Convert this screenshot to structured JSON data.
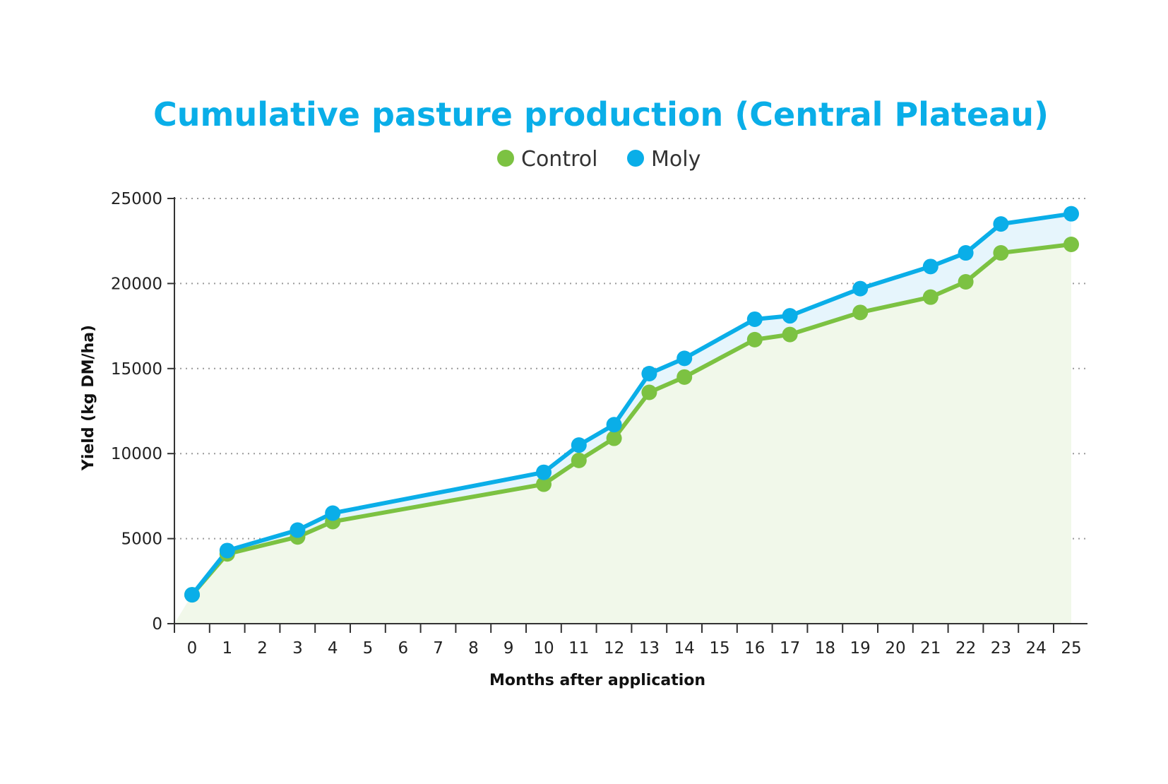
{
  "chart_data": {
    "type": "line",
    "title": "Cumulative pasture production (Central Plateau)",
    "xlabel": "Months after application",
    "ylabel": "Yield (kg DM/ha)",
    "xlim": [
      0,
      25
    ],
    "ylim": [
      0,
      25000
    ],
    "x_ticks": [
      0,
      1,
      2,
      3,
      4,
      5,
      6,
      7,
      8,
      9,
      10,
      11,
      12,
      13,
      14,
      15,
      16,
      17,
      18,
      19,
      20,
      21,
      22,
      23,
      24,
      25
    ],
    "y_ticks": [
      0,
      5000,
      10000,
      15000,
      20000,
      25000
    ],
    "grid": "horizontal dotted",
    "legend_position": "top-center",
    "series": [
      {
        "name": "Control",
        "color": "#7cc242",
        "fill": "#f1f8ea",
        "points": [
          {
            "x": 0,
            "y": 1700
          },
          {
            "x": 1,
            "y": 4100
          },
          {
            "x": 3,
            "y": 5100
          },
          {
            "x": 4,
            "y": 6000
          },
          {
            "x": 10,
            "y": 8200
          },
          {
            "x": 11,
            "y": 9600
          },
          {
            "x": 12,
            "y": 10900
          },
          {
            "x": 13,
            "y": 13600
          },
          {
            "x": 14,
            "y": 14500
          },
          {
            "x": 16,
            "y": 16700
          },
          {
            "x": 17,
            "y": 17000
          },
          {
            "x": 19,
            "y": 18300
          },
          {
            "x": 21,
            "y": 19200
          },
          {
            "x": 22,
            "y": 20100
          },
          {
            "x": 23,
            "y": 21800
          },
          {
            "x": 25,
            "y": 22300
          }
        ]
      },
      {
        "name": "Moly",
        "color": "#0aaee8",
        "fill": "#e6f5fc",
        "points": [
          {
            "x": 0,
            "y": 1700
          },
          {
            "x": 1,
            "y": 4300
          },
          {
            "x": 3,
            "y": 5500
          },
          {
            "x": 4,
            "y": 6500
          },
          {
            "x": 10,
            "y": 8900
          },
          {
            "x": 11,
            "y": 10500
          },
          {
            "x": 12,
            "y": 11700
          },
          {
            "x": 13,
            "y": 14700
          },
          {
            "x": 14,
            "y": 15600
          },
          {
            "x": 16,
            "y": 17900
          },
          {
            "x": 17,
            "y": 18100
          },
          {
            "x": 19,
            "y": 19700
          },
          {
            "x": 21,
            "y": 21000
          },
          {
            "x": 22,
            "y": 21800
          },
          {
            "x": 23,
            "y": 23500
          },
          {
            "x": 25,
            "y": 24100
          }
        ]
      }
    ]
  },
  "colors": {
    "title": "#0aaee8",
    "axis": "#333333",
    "grid": "#9a9a9a"
  }
}
